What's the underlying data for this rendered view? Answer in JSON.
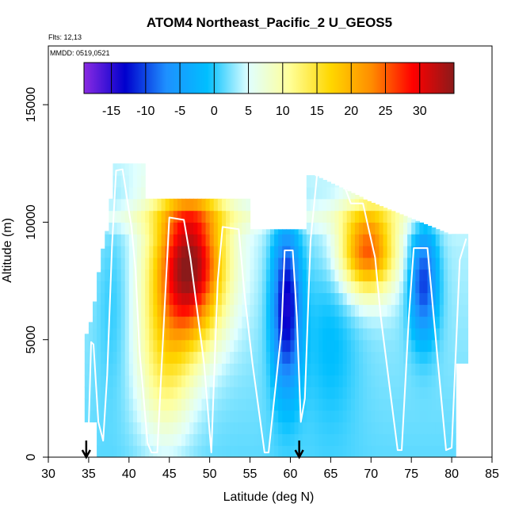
{
  "header": {
    "title": "ATOM4 Northeast_Pacific_2 U_GEOS5",
    "flights": "Flts: 12,13",
    "dates": "MMDD: 0519,0521"
  },
  "chart_data": {
    "type": "heatmap",
    "title": "ATOM4 Northeast_Pacific_2 U_GEOS5",
    "xlabel": "Latitude (deg N)",
    "ylabel": "Altitude (m)",
    "xlim": [
      30,
      85
    ],
    "ylim": [
      0,
      17500
    ],
    "x_ticks": [
      30,
      35,
      40,
      45,
      50,
      55,
      60,
      65,
      70,
      75,
      80,
      85
    ],
    "y_ticks": [
      0,
      5000,
      10000,
      15000
    ],
    "colorbar": {
      "min": -19,
      "max": 35,
      "ticks": [
        -15,
        -10,
        -5,
        0,
        5,
        10,
        15,
        20,
        25,
        30
      ],
      "colors": [
        "#8a2be2",
        "#0000cd",
        "#1e90ff",
        "#00bfff",
        "#e0ffff",
        "#ffff99",
        "#ffd700",
        "#ff8c00",
        "#ff0000",
        "#8b1a1a"
      ]
    },
    "flight_track": [
      [
        35.0,
        1200
      ],
      [
        35.3,
        4900
      ],
      [
        35.6,
        4800
      ],
      [
        36.2,
        1500
      ],
      [
        36.8,
        700
      ],
      [
        37.3,
        3500
      ],
      [
        37.9,
        9000
      ],
      [
        38.4,
        12200
      ],
      [
        39.2,
        12250
      ],
      [
        39.8,
        10900
      ],
      [
        40.3,
        9800
      ],
      [
        40.8,
        8000
      ],
      [
        41.3,
        4500
      ],
      [
        41.7,
        3000
      ],
      [
        42.3,
        600
      ],
      [
        42.8,
        200
      ],
      [
        43.5,
        200
      ],
      [
        44.3,
        5600
      ],
      [
        45.0,
        10200
      ],
      [
        46.8,
        10100
      ],
      [
        47.6,
        8500
      ],
      [
        49.3,
        4000
      ],
      [
        50.2,
        200
      ],
      [
        51.0,
        7500
      ],
      [
        51.6,
        9800
      ],
      [
        53.6,
        9700
      ],
      [
        54.3,
        7000
      ],
      [
        55.3,
        4000
      ],
      [
        56.8,
        200
      ],
      [
        57.3,
        200
      ],
      [
        58.9,
        5400
      ],
      [
        59.3,
        8800
      ],
      [
        60.3,
        8800
      ],
      [
        60.8,
        6000
      ],
      [
        61.3,
        1500
      ],
      [
        61.8,
        2500
      ],
      [
        62.5,
        9200
      ],
      [
        63.3,
        12000
      ],
      [
        66.2,
        12000
      ],
      [
        67.5,
        10800
      ],
      [
        69.0,
        10800
      ],
      [
        70.5,
        8500
      ],
      [
        71.2,
        6000
      ],
      [
        72.3,
        3000
      ],
      [
        73.3,
        300
      ],
      [
        73.8,
        300
      ],
      [
        74.7,
        6000
      ],
      [
        75.3,
        8900
      ],
      [
        77.0,
        8900
      ],
      [
        78.3,
        4000
      ],
      [
        79.3,
        300
      ],
      [
        80.0,
        400
      ],
      [
        81.0,
        8400
      ],
      [
        81.8,
        9300
      ]
    ],
    "markers": [
      {
        "lat": 34.7
      },
      {
        "lat": 61.1
      }
    ]
  }
}
